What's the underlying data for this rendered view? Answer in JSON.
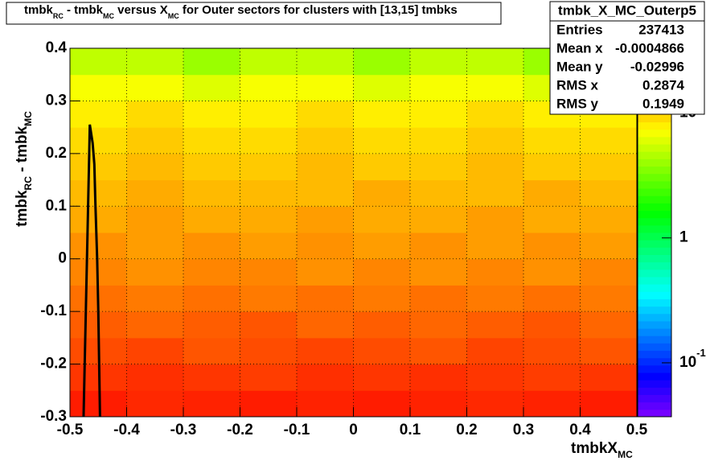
{
  "chart_data": {
    "type": "heatmap",
    "title_parts": [
      "tmbk",
      "RC",
      " - tmbk",
      "MC",
      " versus X",
      "MC",
      " for Outer sectors for clusters with [13,15] tmbks"
    ],
    "ylabel_parts": [
      "tmbk",
      "RC",
      " - tmbk",
      "MC"
    ],
    "xlabel_parts": [
      "tmbkX",
      "MC"
    ],
    "xlim": [
      -0.5,
      0.5
    ],
    "xticks": [
      -0.5,
      -0.4,
      -0.3,
      -0.2,
      -0.1,
      0,
      0.1,
      0.2,
      0.3,
      0.4,
      0.5
    ],
    "ylim": [
      -0.3,
      0.4
    ],
    "yticks": [
      -0.3,
      -0.2,
      -0.1,
      0,
      0.1,
      0.2,
      0.3,
      0.4
    ],
    "zlim": [
      0.037,
      33
    ],
    "zlog": true,
    "zticks": [
      {
        "value": 0.1,
        "label": "10",
        "exponent": "-1"
      },
      1,
      10
    ],
    "grid": true,
    "xbins": [
      -0.5,
      -0.4,
      -0.3,
      -0.2,
      -0.1,
      0,
      0.1,
      0.2,
      0.3,
      0.4,
      0.5
    ],
    "ybins": [
      -0.3,
      -0.25,
      -0.2,
      -0.15,
      -0.1,
      -0.05,
      0,
      0.05,
      0.1,
      0.15,
      0.2,
      0.25,
      0.3,
      0.35,
      0.4
    ],
    "z": [
      [
        28,
        26,
        27,
        28,
        27,
        28,
        27,
        26,
        27,
        28
      ],
      [
        24,
        25,
        24,
        23,
        25,
        24,
        25,
        24,
        23,
        24
      ],
      [
        21,
        22,
        20,
        21,
        22,
        21,
        20,
        22,
        21,
        20
      ],
      [
        19,
        18,
        19,
        20,
        18,
        19,
        18,
        19,
        20,
        18
      ],
      [
        17,
        16,
        17,
        16,
        17,
        16,
        17,
        16,
        17,
        16
      ],
      [
        15,
        14,
        15,
        15,
        14,
        15,
        14,
        15,
        14,
        15
      ],
      [
        14,
        13,
        14,
        13,
        14,
        13,
        14,
        13,
        14,
        13
      ],
      [
        12,
        13,
        12,
        12,
        13,
        12,
        12,
        13,
        12,
        12
      ],
      [
        11,
        12,
        11,
        11,
        11,
        12,
        11,
        11,
        12,
        11
      ],
      [
        10,
        11,
        10,
        10,
        11,
        10,
        10,
        11,
        10,
        10
      ],
      [
        9,
        10,
        9,
        9,
        10,
        9,
        9,
        10,
        9,
        9
      ],
      [
        8,
        9,
        8,
        8,
        9,
        8,
        8,
        9,
        8,
        8
      ],
      [
        7,
        7,
        6,
        7,
        7,
        6,
        7,
        7,
        6,
        7
      ],
      [
        5,
        5,
        4,
        5,
        5,
        4,
        5,
        5,
        4,
        5
      ]
    ],
    "curve": {
      "color": "#000000",
      "x": [
        -0.476,
        -0.472,
        -0.468,
        -0.466,
        -0.465,
        -0.46,
        -0.457,
        -0.455,
        -0.452,
        -0.45,
        -0.447
      ],
      "y": [
        -0.3,
        -0.1,
        0.1,
        0.2,
        0.255,
        0.22,
        0.18,
        0.1,
        0,
        -0.1,
        -0.3
      ]
    },
    "stats": {
      "name": "tmbk_X_MC_Outerp5",
      "rows": [
        [
          "Entries",
          "237413"
        ],
        [
          "Mean x",
          "-0.0004866"
        ],
        [
          "Mean y",
          "-0.02996"
        ],
        [
          "RMS x",
          "0.2874"
        ],
        [
          "RMS y",
          "0.1949"
        ]
      ]
    }
  }
}
